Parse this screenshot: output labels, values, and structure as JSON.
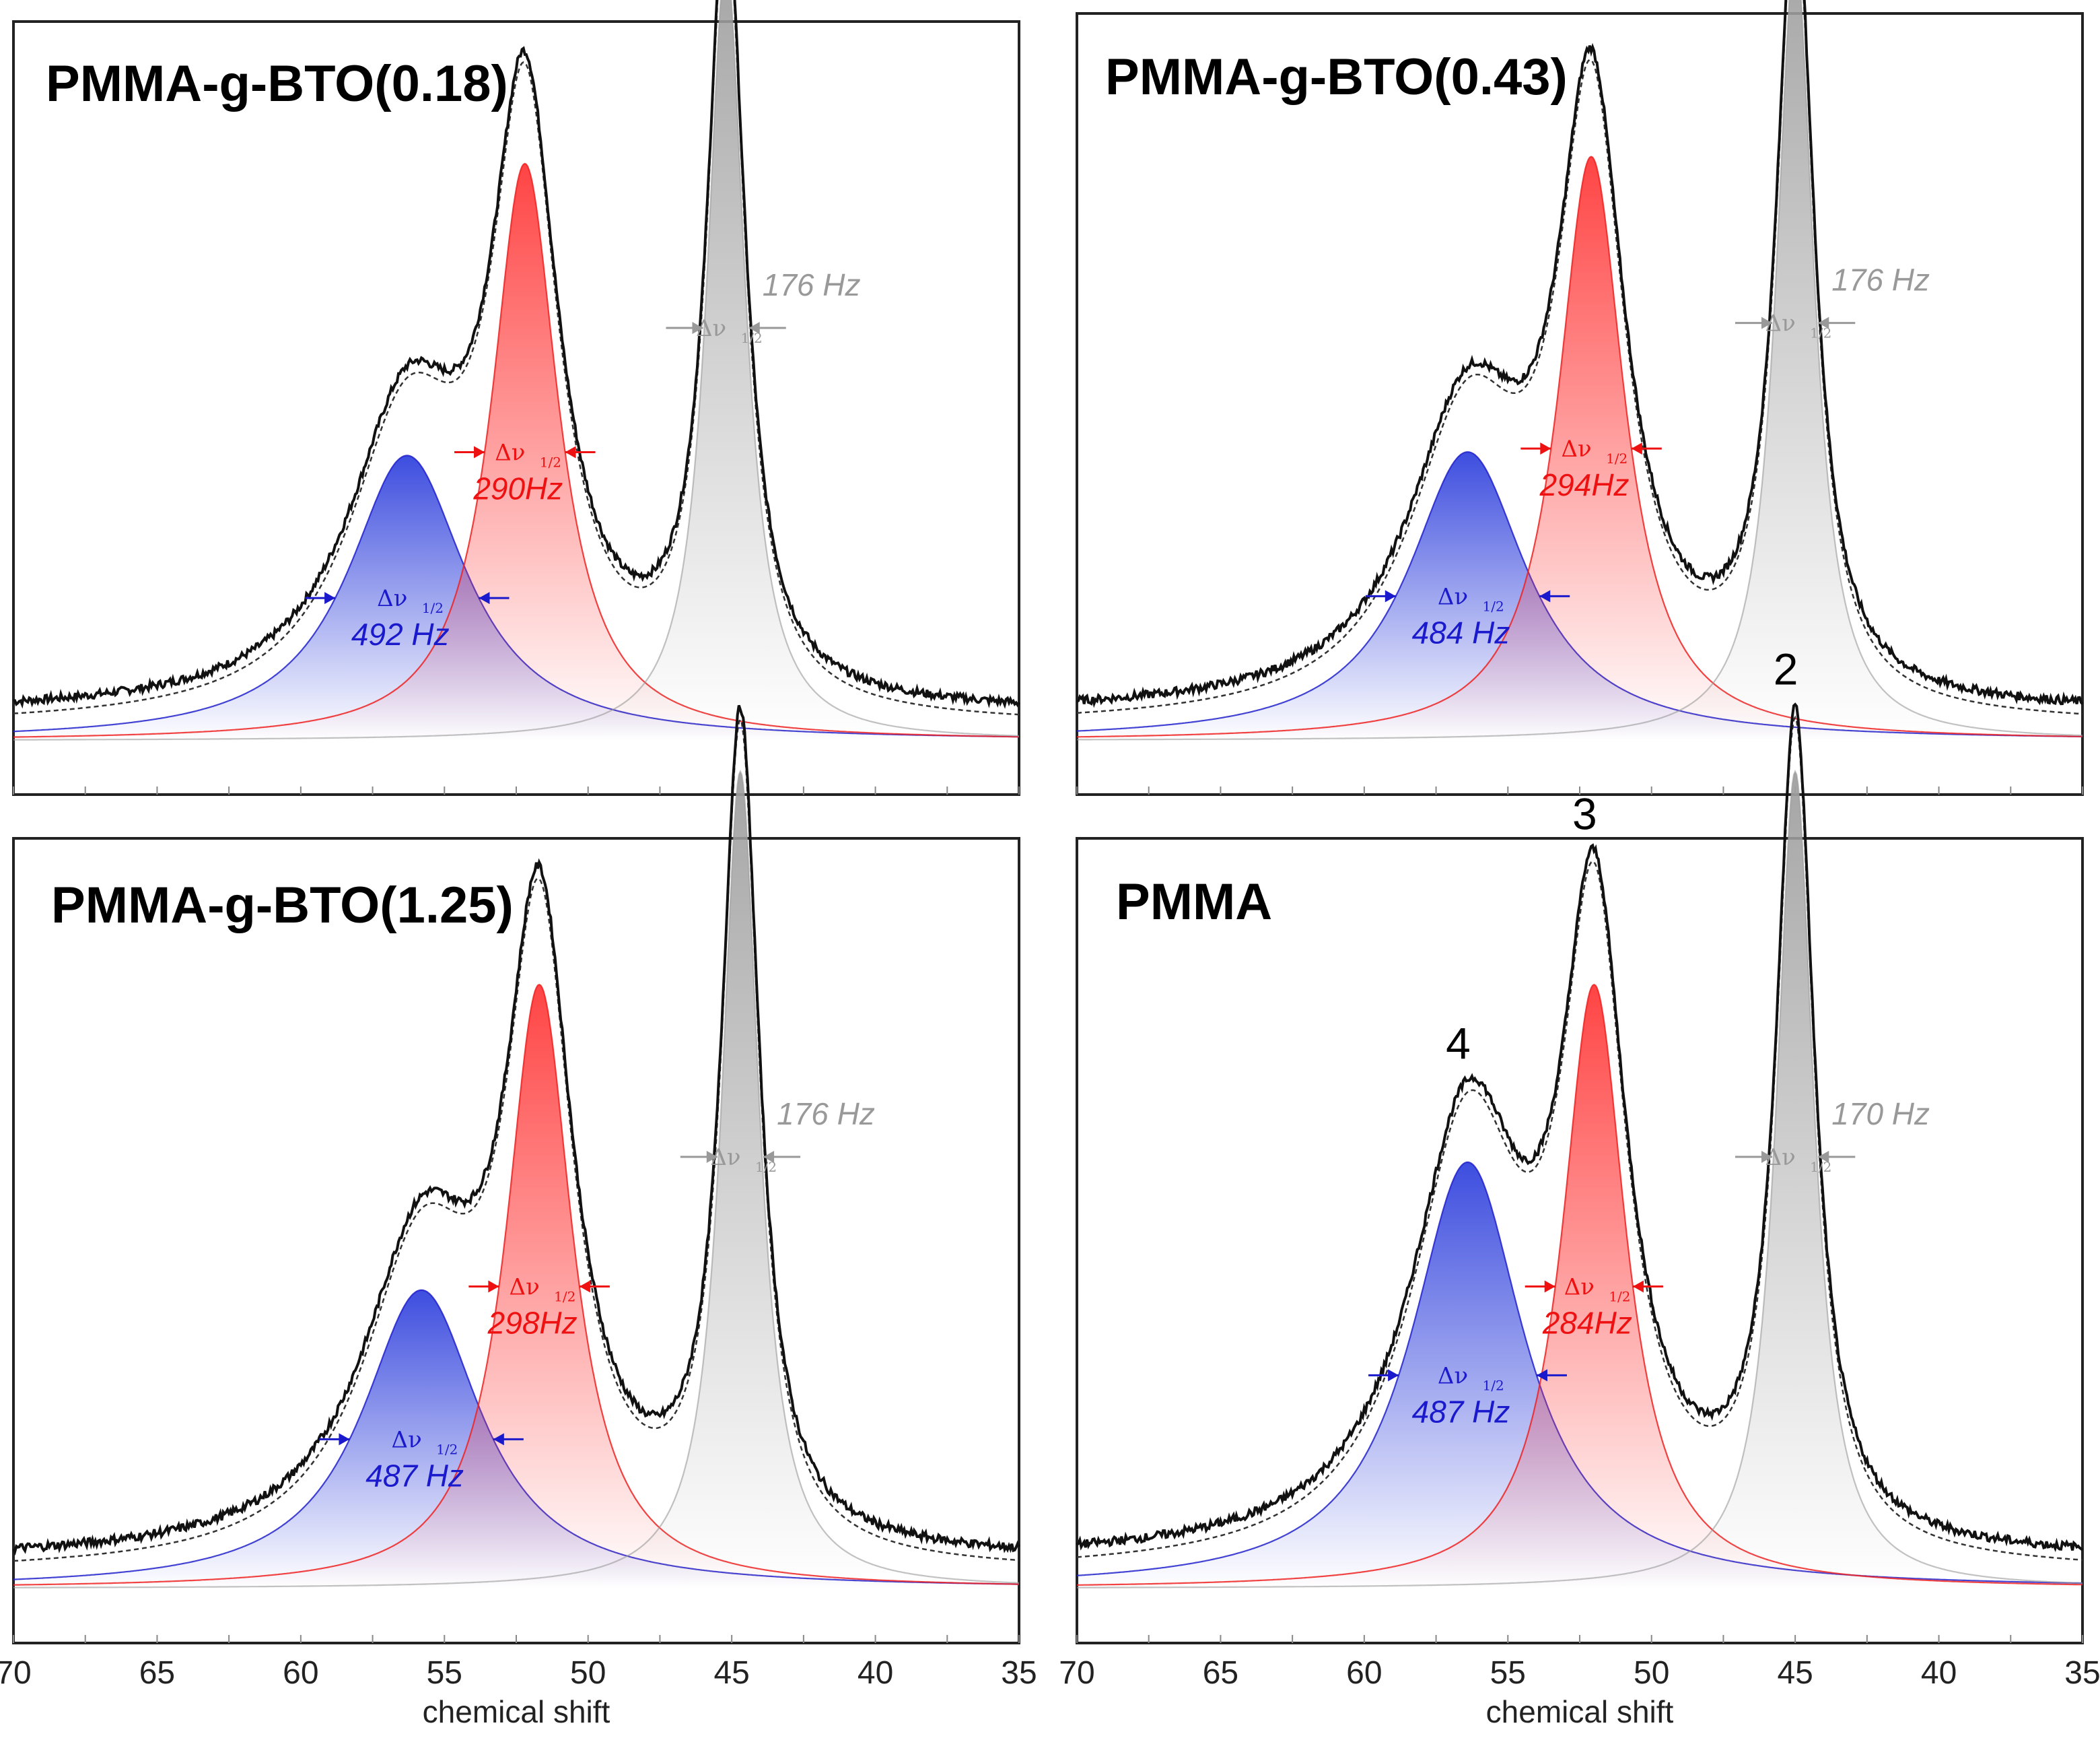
{
  "chart_data": [
    {
      "type": "line",
      "title": "PMMA-g-BTO(0.18)",
      "xlabel": "",
      "xlim": [
        70,
        35
      ],
      "x_ticks": [],
      "baseline": 0.02,
      "components": [
        {
          "name": "peak 4 fit",
          "color": "#2222cc",
          "center": 56.3,
          "height": 0.42,
          "width": 2.5,
          "fwhm_label": "492 Hz"
        },
        {
          "name": "peak 3 fit",
          "color": "#ee2222",
          "center": 52.2,
          "height": 0.85,
          "width": 1.4,
          "fwhm_label": "290Hz"
        },
        {
          "name": "peak 2 fit",
          "color": "#999999",
          "center": 45.2,
          "height": 1.15,
          "width": 0.8,
          "fwhm_label": "176 Hz"
        }
      ],
      "delta_label": "Δν",
      "delta_sub": "1/2"
    },
    {
      "type": "line",
      "title": "PMMA-g-BTO(0.43)",
      "xlabel": "",
      "xlim": [
        70,
        35
      ],
      "x_ticks": [],
      "baseline": 0.02,
      "components": [
        {
          "name": "peak 4 fit",
          "color": "#2222cc",
          "center": 56.4,
          "height": 0.42,
          "width": 2.5,
          "fwhm_label": "484 Hz"
        },
        {
          "name": "peak 3 fit",
          "color": "#ee2222",
          "center": 52.1,
          "height": 0.85,
          "width": 1.4,
          "fwhm_label": "294Hz"
        },
        {
          "name": "peak 2 fit",
          "color": "#999999",
          "center": 45.0,
          "height": 1.15,
          "width": 0.8,
          "fwhm_label": "176 Hz"
        }
      ],
      "delta_label": "Δν",
      "delta_sub": "1/2"
    },
    {
      "type": "line",
      "title": "PMMA-g-BTO(1.25)",
      "xlabel": "chemical shift",
      "xlim": [
        70,
        35
      ],
      "x_ticks": [
        "70",
        "65",
        "60",
        "55",
        "50",
        "45",
        "40",
        "35"
      ],
      "baseline": 0.02,
      "components": [
        {
          "name": "peak 4 fit",
          "color": "#2222cc",
          "center": 55.8,
          "height": 0.42,
          "width": 2.5,
          "fwhm_label": "487 Hz"
        },
        {
          "name": "peak 3 fit",
          "color": "#ee2222",
          "center": 51.7,
          "height": 0.85,
          "width": 1.4,
          "fwhm_label": "298Hz"
        },
        {
          "name": "peak 2 fit",
          "color": "#999999",
          "center": 44.7,
          "height": 1.15,
          "width": 0.8,
          "fwhm_label": "176 Hz"
        }
      ],
      "delta_label": "Δν",
      "delta_sub": "1/2"
    },
    {
      "type": "line",
      "title": "PMMA",
      "xlabel": "chemical shift",
      "xlim": [
        70,
        35
      ],
      "x_ticks": [
        "70",
        "65",
        "60",
        "55",
        "50",
        "45",
        "40",
        "35"
      ],
      "baseline": 0.02,
      "peak_labels": [
        "4",
        "3",
        "2"
      ],
      "components": [
        {
          "name": "peak 4 fit",
          "color": "#2222cc",
          "center": 56.4,
          "height": 0.6,
          "width": 2.4,
          "fwhm_label": "487 Hz"
        },
        {
          "name": "peak 3 fit",
          "color": "#ee2222",
          "center": 52.0,
          "height": 0.85,
          "width": 1.35,
          "fwhm_label": "284Hz"
        },
        {
          "name": "peak 2 fit",
          "color": "#999999",
          "center": 45.0,
          "height": 1.15,
          "width": 0.8,
          "fwhm_label": "170 Hz"
        }
      ],
      "delta_label": "Δν",
      "delta_sub": "1/2"
    }
  ]
}
